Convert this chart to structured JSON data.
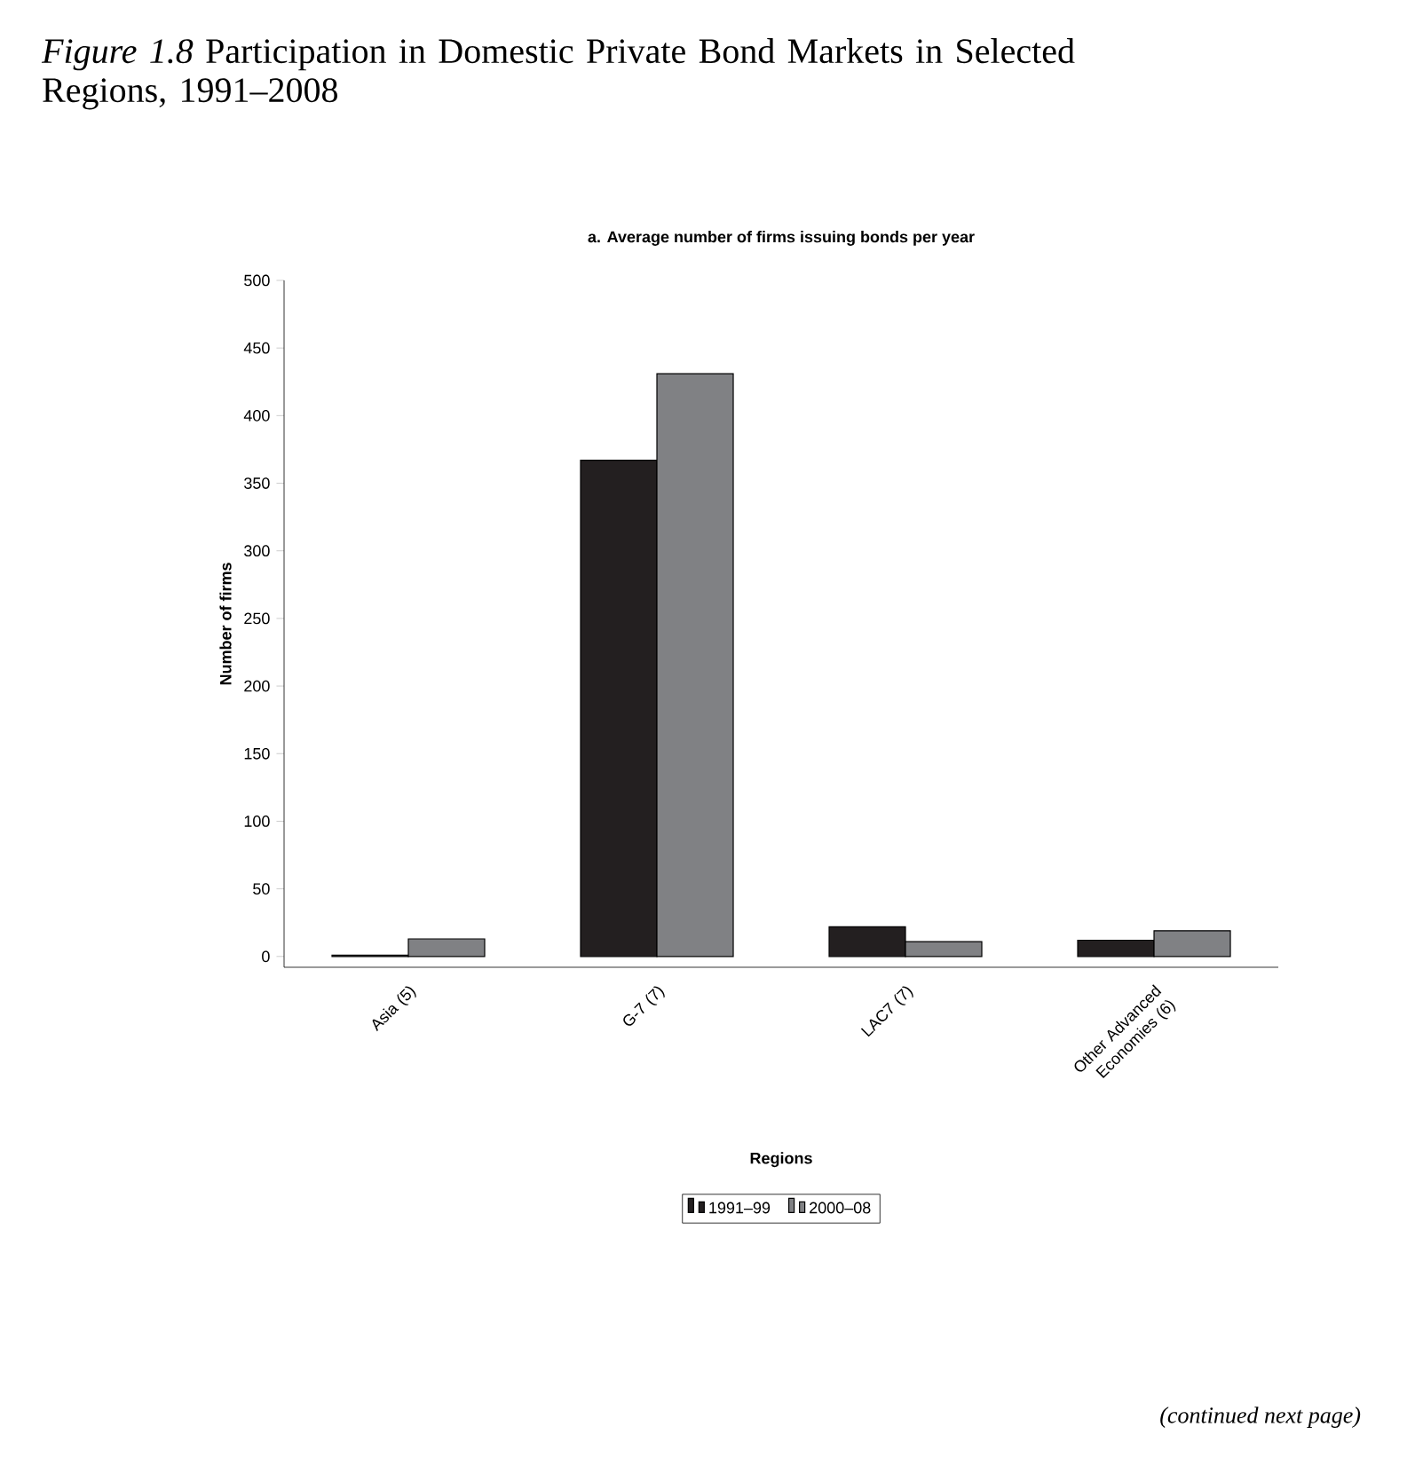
{
  "chart_data": {
    "type": "bar",
    "title": "*Figure 1.8* Participation in Domestic Private Bond Markets in Selected Regions, 1991–2008",
    "subtitle": "a. Average number of firms issuing bonds per year",
    "xlabel": "Regions",
    "ylabel": "Number of firms",
    "categories": [
      "Asia (5)",
      "G-7 (7)",
      "LAC7 (7)",
      "Other Advanced Economies (6)"
    ],
    "series": [
      {
        "name": "1991–99",
        "color": "#231f20",
        "values": [
          1,
          367,
          22,
          12
        ]
      },
      {
        "name": "2000–08",
        "color": "#808184",
        "values": [
          13,
          431,
          11,
          19
        ]
      }
    ],
    "ylim": [
      -8,
      500
    ],
    "yticks": [
      0,
      50,
      100,
      150,
      200,
      250,
      300,
      350,
      400,
      450,
      500
    ],
    "legend": "bottom",
    "annotations": [
      "(continued next page)"
    ]
  }
}
